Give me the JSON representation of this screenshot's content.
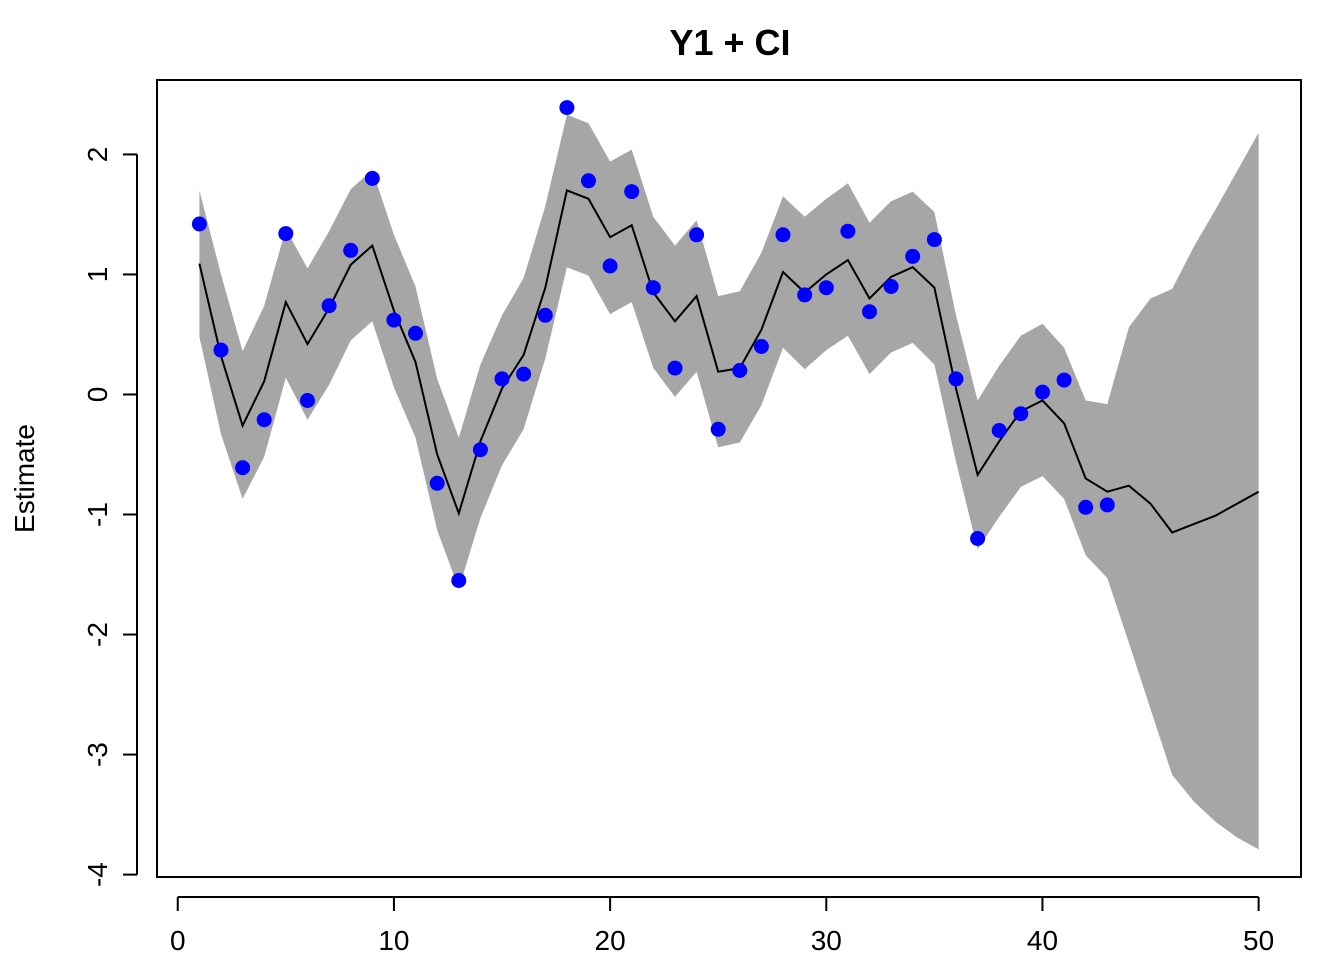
{
  "chart_data": {
    "type": "line",
    "title": "Y1 + CI",
    "xlabel": "",
    "ylabel": "Estimate",
    "xlim": [
      -0.96,
      51.96
    ],
    "ylim": [
      -4.02,
      2.62
    ],
    "xticks": [
      0,
      10,
      20,
      30,
      40,
      50
    ],
    "yticks": [
      -4,
      -3,
      -2,
      -1,
      0,
      1,
      2
    ],
    "grid": false,
    "colors": {
      "band": "#a6a6a6",
      "line": "#000000",
      "points": "#0000ff",
      "frame": "#000000"
    },
    "x": [
      1,
      2,
      3,
      4,
      5,
      6,
      7,
      8,
      9,
      10,
      11,
      12,
      13,
      14,
      15,
      16,
      17,
      18,
      19,
      20,
      21,
      22,
      23,
      24,
      25,
      26,
      27,
      28,
      29,
      30,
      31,
      32,
      33,
      34,
      35,
      36,
      37,
      38,
      39,
      40,
      41,
      42,
      43,
      44,
      45,
      46,
      47,
      48,
      49,
      50
    ],
    "series": [
      {
        "type": "line",
        "values": [
          1.09,
          0.32,
          -0.26,
          0.11,
          0.77,
          0.42,
          0.72,
          1.08,
          1.24,
          0.7,
          0.27,
          -0.5,
          -0.99,
          -0.39,
          0.05,
          0.33,
          0.89,
          1.7,
          1.63,
          1.31,
          1.41,
          0.85,
          0.61,
          0.82,
          0.19,
          0.22,
          0.54,
          1.02,
          0.85,
          1.0,
          1.12,
          0.8,
          0.98,
          1.06,
          0.89,
          0.05,
          -0.67,
          -0.39,
          -0.14,
          -0.05,
          -0.24,
          -0.7,
          -0.81,
          -0.76,
          -0.91,
          -1.15,
          -1.08,
          -1.01,
          -0.91,
          -0.81
        ]
      },
      {
        "type": "band",
        "upper": [
          1.7,
          1.0,
          0.36,
          0.74,
          1.38,
          1.05,
          1.36,
          1.71,
          1.87,
          1.33,
          0.9,
          0.13,
          -0.36,
          0.25,
          0.66,
          0.97,
          1.57,
          2.33,
          2.26,
          1.94,
          2.04,
          1.48,
          1.24,
          1.45,
          0.82,
          0.86,
          1.18,
          1.65,
          1.48,
          1.63,
          1.76,
          1.43,
          1.61,
          1.69,
          1.52,
          0.66,
          -0.05,
          0.24,
          0.49,
          0.59,
          0.39,
          -0.05,
          -0.08,
          0.56,
          0.8,
          0.88,
          1.23,
          1.54,
          1.86,
          2.18
        ],
        "lower": [
          0.48,
          -0.33,
          -0.87,
          -0.52,
          0.14,
          -0.21,
          0.08,
          0.45,
          0.61,
          0.06,
          -0.36,
          -1.13,
          -1.62,
          -1.03,
          -0.59,
          -0.29,
          0.3,
          1.06,
          0.99,
          0.67,
          0.77,
          0.22,
          -0.02,
          0.19,
          -0.44,
          -0.4,
          -0.09,
          0.39,
          0.21,
          0.37,
          0.49,
          0.17,
          0.35,
          0.43,
          0.25,
          -0.56,
          -1.29,
          -1.02,
          -0.77,
          -0.68,
          -0.87,
          -1.34,
          -1.53,
          -2.07,
          -2.62,
          -3.17,
          -3.39,
          -3.56,
          -3.69,
          -3.79
        ]
      },
      {
        "type": "points",
        "x": [
          1,
          2,
          3,
          4,
          5,
          6,
          7,
          8,
          9,
          10,
          11,
          12,
          13,
          14,
          15,
          16,
          17,
          18,
          19,
          20,
          21,
          22,
          23,
          24,
          25,
          26,
          27,
          28,
          29,
          30,
          31,
          32,
          33,
          34,
          35,
          36,
          37,
          38,
          39,
          40,
          41,
          42,
          43
        ],
        "values": [
          1.42,
          0.37,
          -0.61,
          -0.21,
          1.34,
          -0.05,
          0.74,
          1.2,
          1.8,
          0.62,
          0.51,
          -0.74,
          -1.55,
          -0.46,
          0.13,
          0.17,
          0.66,
          2.39,
          1.78,
          1.07,
          1.69,
          0.89,
          0.22,
          1.33,
          -0.29,
          0.2,
          0.4,
          1.33,
          0.83,
          0.89,
          1.36,
          0.69,
          0.9,
          1.15,
          1.29,
          0.13,
          -1.2,
          -0.3,
          -0.16,
          0.02,
          0.12,
          -0.94,
          -0.92
        ]
      }
    ]
  }
}
